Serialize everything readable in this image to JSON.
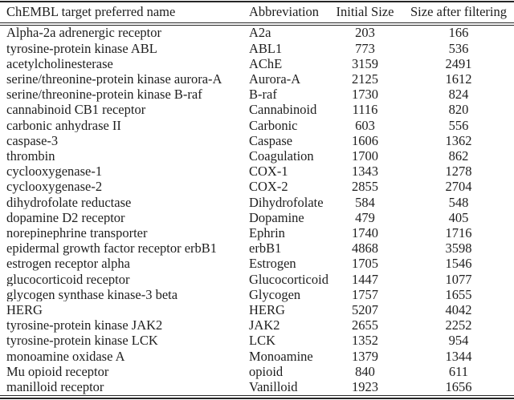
{
  "colors": {
    "background": "#ffffff",
    "text": "#1e1e1e",
    "rule": "#262626"
  },
  "table": {
    "columns": [
      "ChEMBL target preferred name",
      "Abbreviation",
      "Initial Size",
      "Size after filtering"
    ],
    "rows": [
      {
        "name": "Alpha-2a adrenergic receptor",
        "abbreviation": "A2a",
        "initial_size": "203",
        "size_after_filtering": "166"
      },
      {
        "name": "tyrosine-protein kinase ABL",
        "abbreviation": "ABL1",
        "initial_size": "773",
        "size_after_filtering": "536"
      },
      {
        "name": "acetylcholinesterase",
        "abbreviation": "AChE",
        "initial_size": "3159",
        "size_after_filtering": "2491"
      },
      {
        "name": "serine/threonine-protein kinase aurora-A",
        "abbreviation": "Aurora-A",
        "initial_size": "2125",
        "size_after_filtering": "1612"
      },
      {
        "name": "serine/threonine-protein kinase B-raf",
        "abbreviation": "B-raf",
        "initial_size": "1730",
        "size_after_filtering": "824"
      },
      {
        "name": "cannabinoid CB1 receptor",
        "abbreviation": "Cannabinoid",
        "initial_size": "1116",
        "size_after_filtering": "820"
      },
      {
        "name": "carbonic anhydrase II",
        "abbreviation": "Carbonic",
        "initial_size": "603",
        "size_after_filtering": "556"
      },
      {
        "name": "caspase-3",
        "abbreviation": "Caspase",
        "initial_size": "1606",
        "size_after_filtering": "1362"
      },
      {
        "name": "thrombin",
        "abbreviation": "Coagulation",
        "initial_size": "1700",
        "size_after_filtering": "862"
      },
      {
        "name": "cyclooxygenase-1",
        "abbreviation": "COX-1",
        "initial_size": "1343",
        "size_after_filtering": "1278"
      },
      {
        "name": "cyclooxygenase-2",
        "abbreviation": "COX-2",
        "initial_size": "2855",
        "size_after_filtering": "2704"
      },
      {
        "name": "dihydrofolate reductase",
        "abbreviation": "Dihydrofolate",
        "initial_size": "584",
        "size_after_filtering": "548"
      },
      {
        "name": "dopamine D2 receptor",
        "abbreviation": "Dopamine",
        "initial_size": "479",
        "size_after_filtering": "405"
      },
      {
        "name": "norepinephrine transporter",
        "abbreviation": "Ephrin",
        "initial_size": "1740",
        "size_after_filtering": "1716"
      },
      {
        "name": "epidermal growth factor receptor erbB1",
        "abbreviation": "erbB1",
        "initial_size": "4868",
        "size_after_filtering": "3598"
      },
      {
        "name": "estrogen receptor alpha",
        "abbreviation": "Estrogen",
        "initial_size": "1705",
        "size_after_filtering": "1546"
      },
      {
        "name": "glucocorticoid receptor",
        "abbreviation": "Glucocorticoid",
        "initial_size": "1447",
        "size_after_filtering": "1077"
      },
      {
        "name": "glycogen synthase kinase-3 beta",
        "abbreviation": "Glycogen",
        "initial_size": "1757",
        "size_after_filtering": "1655"
      },
      {
        "name": "HERG",
        "abbreviation": "HERG",
        "initial_size": "5207",
        "size_after_filtering": "4042"
      },
      {
        "name": "tyrosine-protein kinase JAK2",
        "abbreviation": "JAK2",
        "initial_size": "2655",
        "size_after_filtering": "2252"
      },
      {
        "name": "tyrosine-protein kinase LCK",
        "abbreviation": "LCK",
        "initial_size": "1352",
        "size_after_filtering": "954"
      },
      {
        "name": "monoamine oxidase A",
        "abbreviation": "Monoamine",
        "initial_size": "1379",
        "size_after_filtering": "1344"
      },
      {
        "name": "Mu opioid receptor",
        "abbreviation": "opioid",
        "initial_size": "840",
        "size_after_filtering": "611"
      },
      {
        "name": "manilloid receptor",
        "abbreviation": "Vanilloid",
        "initial_size": "1923",
        "size_after_filtering": "1656"
      }
    ]
  }
}
